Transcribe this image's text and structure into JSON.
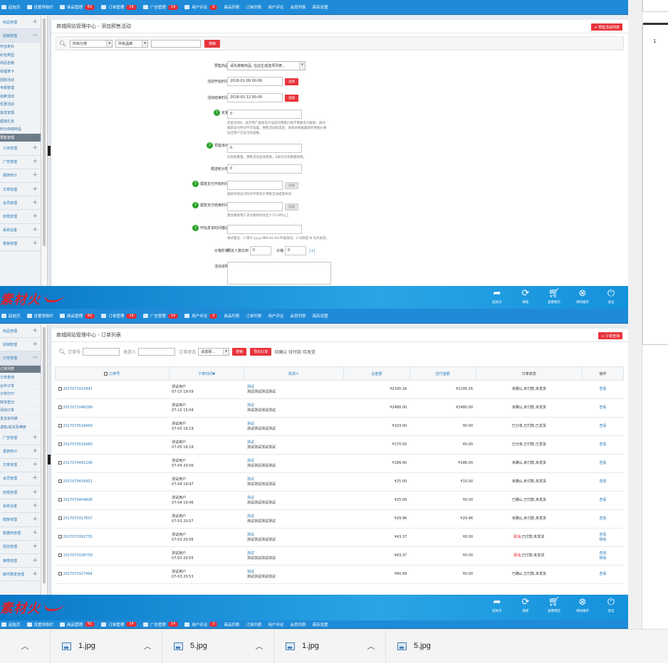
{
  "topnav": [
    {
      "label": "起始页",
      "badge": ""
    },
    {
      "label": "设置导航栏",
      "badge": ""
    },
    {
      "label": "商品管理",
      "badge": "61"
    },
    {
      "label": "订单管理",
      "badge": "14"
    },
    {
      "label": "广告管理",
      "badge": "14"
    },
    {
      "label": "用户评论",
      "badge": "2"
    },
    {
      "label": "商品列表",
      "badge": ""
    },
    {
      "label": "订单列表",
      "badge": ""
    },
    {
      "label": "用户评论",
      "badge": ""
    },
    {
      "label": "会员列表",
      "badge": ""
    },
    {
      "label": "商店设置",
      "badge": ""
    }
  ],
  "header": {
    "logo": "素材火",
    "buttons": [
      "起始页",
      "刷新",
      "查看网店",
      "清除缓存",
      "退出"
    ]
  },
  "presale": {
    "sidebar_top": [
      {
        "label": "商品管理"
      },
      {
        "label": "促销管理",
        "expanded": true
      }
    ],
    "sidebar_sub": [
      "夺宝奇兵",
      "红包类型",
      "商品包装",
      "祝福贺卡",
      "团购活动",
      "专题管理",
      "拍卖活动",
      "优惠活动",
      "批发管理",
      "超值礼包",
      "积分商城商品",
      "预售管理"
    ],
    "sidebar_bottom": [
      "订单管理",
      "广告管理",
      "报表统计",
      "文章管理",
      "会员管理",
      "权限管理",
      "系统设置",
      "模板管理"
    ],
    "title": "商城网站管理中心 - 添加预售活动",
    "title_btn": "+ 预售活动列表",
    "filter": {
      "cat": "所有分类",
      "brand": "所有品牌",
      "search": "搜索"
    },
    "form": {
      "goods_label": "预售商品：",
      "goods_value": "请先搜索商品, 在此生成选项列表...",
      "start_label": "活动开始时间：",
      "start_value": "2018-01-09 00:00",
      "choose": "选择",
      "end_label": "活动结束时间：",
      "end_value": "2018-01-12 00:00",
      "deposit_label": "定金：",
      "deposit_value": "0",
      "deposit_hint": "定金为0时，表示用户直接支付当前的预售价格不需要支付尾款，此时尾款支付时间不可设置，预售活动结束后，系统会根据最新的预售价格返还用户已支付的差额。",
      "stock_label": "预售库存：",
      "stock_value": "0",
      "stock_hint": "达到此数量，预售活动自动结束。0表示没有数量限制。",
      "points_label": "赠送积分数：",
      "points_value": "0",
      "pay_start_label": "尾款支付开始时间：",
      "pay_end_label": "尾款支付结束时间：",
      "pay_start_hint": "尾款开始支付时间不得早于预售活动结束时间",
      "pay_end_hint": "建议尾款用户支付尾款时间至少72小时以上",
      "ship_label": "开始发货时间描述：",
      "ship_hint": "格式建议：1.预计 yyyy-MM-dd HH 时候发货。2.付款后 N 天内发货。",
      "ladder_label": "价格阶梯：",
      "ladder_count": "预定人数达到",
      "ladder_price": "价格",
      "ladder_add": "[+]",
      "desc_label": "活动说明："
    }
  },
  "orders": {
    "sidebar_top": [
      {
        "label": "商品管理"
      },
      {
        "label": "促销管理"
      },
      {
        "label": "订单管理",
        "expanded": true
      }
    ],
    "sidebar_sub": [
      "订单列表",
      "订单查询",
      "合并订单",
      "订单打印",
      "缺货登记",
      "添加订单",
      "发货单列表",
      "退款/退货及维修"
    ],
    "sidebar_bottom": [
      "广告管理",
      "报表统计",
      "文章管理",
      "会员管理",
      "权限管理",
      "系统设置",
      "模板管理",
      "数据库管理",
      "短信管理",
      "推荐管理",
      "邮件群发管理"
    ],
    "title": "商城网站管理中心 - 订单列表",
    "title_btn": "+ 订单查询",
    "filter": {
      "order_no": "订单号",
      "consignee": "收货人",
      "status": "订单状态",
      "status_sel": "请选择...",
      "search": "搜索",
      "export": "导出订单",
      "quick": "待确认  待付款  待发货"
    },
    "columns": [
      "订单号",
      "下单时间▼",
      "收货人",
      "总金额",
      "应付金额",
      "订单状态",
      "操作"
    ],
    "rows": [
      {
        "no": "2017071013442",
        "user": "测试用户",
        "time": "07-10 19:09",
        "name": "测试",
        "addr": "测试测试测试测试",
        "total": "¥2195.16",
        "due": "¥2195.16",
        "st1": "",
        "st2": "未确认,未付款,未发货",
        "ops": [
          "查看"
        ]
      },
      {
        "no": "2017071046299",
        "user": "测试用户",
        "time": "07-10 15:04",
        "name": "测试",
        "addr": "测试测试测试测试",
        "total": "¥2480.00",
        "due": "¥2480.00",
        "st1": "",
        "st2": "未确认,未付款,未发货",
        "ops": [
          "查看"
        ]
      },
      {
        "no": "2017070518460",
        "user": "测试用户",
        "time": "07-05 16:19",
        "name": "测试",
        "addr": "测试测试测试测试",
        "total": "¥103.00",
        "due": "¥0.00",
        "st1": "",
        "st2": "已分单,已付款,已发货",
        "ops": [
          "查看"
        ]
      },
      {
        "no": "2017070516483",
        "user": "测试用户",
        "time": "07-05 16:18",
        "name": "测试",
        "addr": "测试测试测试测试",
        "total": "¥170.50",
        "due": "¥0.00",
        "st1": "",
        "st2": "已分单,已付款,已发货",
        "ops": [
          "查看"
        ]
      },
      {
        "no": "2017070491296",
        "user": "测试用户",
        "time": "07-04 20:06",
        "name": "测试",
        "addr": "测试测试测试测试",
        "total": "¥186.00",
        "due": "¥186.00",
        "st1": "",
        "st2": "未确认,未付款,未发货",
        "ops": [
          "查看"
        ]
      },
      {
        "no": "2017070435451",
        "user": "测试用户",
        "time": "07-04 19:47",
        "name": "测试",
        "addr": "测试测试测试测试",
        "total": "¥25.00",
        "due": "¥10.00",
        "st1": "",
        "st2": "未确认,未付款,未发货",
        "ops": [
          "查看"
        ]
      },
      {
        "no": "2017070404808",
        "user": "测试用户",
        "time": "07-04 19:46",
        "name": "测试",
        "addr": "测试测试测试测试",
        "total": "¥25.00",
        "due": "¥0.00",
        "st1": "",
        "st2": "已确认,已付款,未发货",
        "ops": [
          "查看"
        ]
      },
      {
        "no": "2017070317607",
        "user": "测试用户",
        "time": "07-03 20:57",
        "name": "测试",
        "addr": "测试测试测试测试",
        "total": "¥29.96",
        "due": "¥29.96",
        "st1": "",
        "st2": "未确认,未付款,未发货",
        "ops": [
          "查看"
        ]
      },
      {
        "no": "2017070392755",
        "user": "测试用户",
        "time": "07-03 20:56",
        "name": "测试",
        "addr": "测试测试测试测试",
        "total": "¥43.37",
        "due": "¥0.00",
        "st1": "取消",
        "st2": ",已付款,未发货",
        "ops": [
          "查看",
          "移除"
        ]
      },
      {
        "no": "2017070338759",
        "user": "测试用户",
        "time": "07-03 20:55",
        "name": "测试",
        "addr": "测试测试测试测试",
        "total": "¥43.37",
        "due": "¥0.00",
        "st1": "取消",
        "st2": ",已付款,未发货",
        "ops": [
          "查看",
          "移除"
        ]
      },
      {
        "no": "2017070327464",
        "user": "测试用户",
        "time": "07-03 20:53",
        "name": "测试",
        "addr": "测试测试测试测试",
        "total": "¥40.69",
        "due": "¥0.00",
        "st1": "",
        "st2": "已确认,已付款,未发货",
        "ops": [
          "查看"
        ]
      }
    ]
  },
  "rightpane": {
    "char": "1"
  },
  "downloads": [
    {
      "name": "1.jpg"
    },
    {
      "name": "5.jpg"
    },
    {
      "name": "1.jpg"
    },
    {
      "name": "5.jpg"
    }
  ]
}
